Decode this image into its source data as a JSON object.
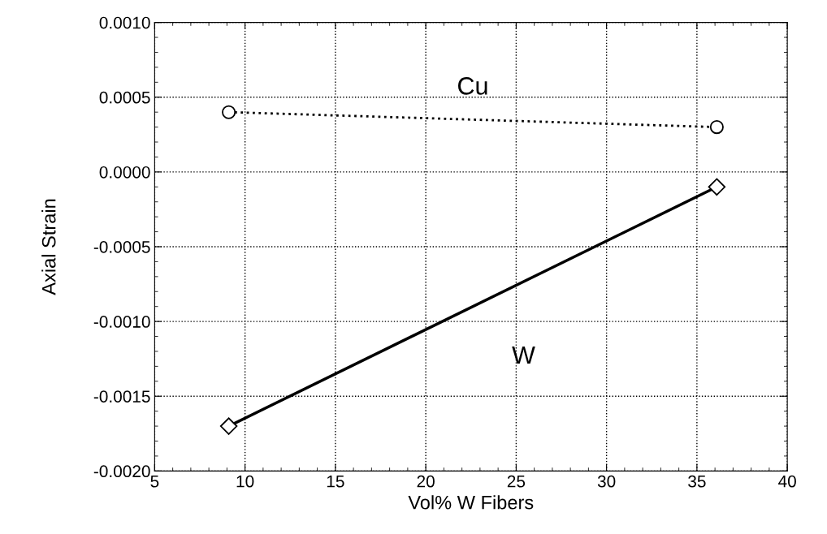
{
  "chart_data": {
    "type": "line",
    "xlabel": "Vol% W Fibers",
    "ylabel": "Axial Strain",
    "xlim": [
      5,
      40
    ],
    "xticks": [
      5,
      10,
      15,
      20,
      25,
      30,
      35,
      40
    ],
    "ylim": [
      -0.002,
      0.001
    ],
    "yticks": [
      {
        "value": -0.002,
        "label": "-0.0020"
      },
      {
        "value": -0.0015,
        "label": "-0.0015"
      },
      {
        "value": -0.001,
        "label": "-0.0010"
      },
      {
        "value": -0.0005,
        "label": "-0.0005"
      },
      {
        "value": 0,
        "label": "0.0000"
      },
      {
        "value": 0.0005,
        "label": "0.0005"
      },
      {
        "value": 0.001,
        "label": "0.0010"
      }
    ],
    "grid": true,
    "x": [
      9.1,
      36.1
    ],
    "series": [
      {
        "name": "Cu",
        "color": "#000000",
        "values": [
          0.0004,
          0.0003
        ],
        "marker": "circle",
        "line_style": "dotted"
      },
      {
        "name": "W",
        "color": "#000000",
        "values": [
          -0.0017,
          -0.0001
        ],
        "marker": "diamond",
        "line_style": "solid"
      }
    ]
  }
}
